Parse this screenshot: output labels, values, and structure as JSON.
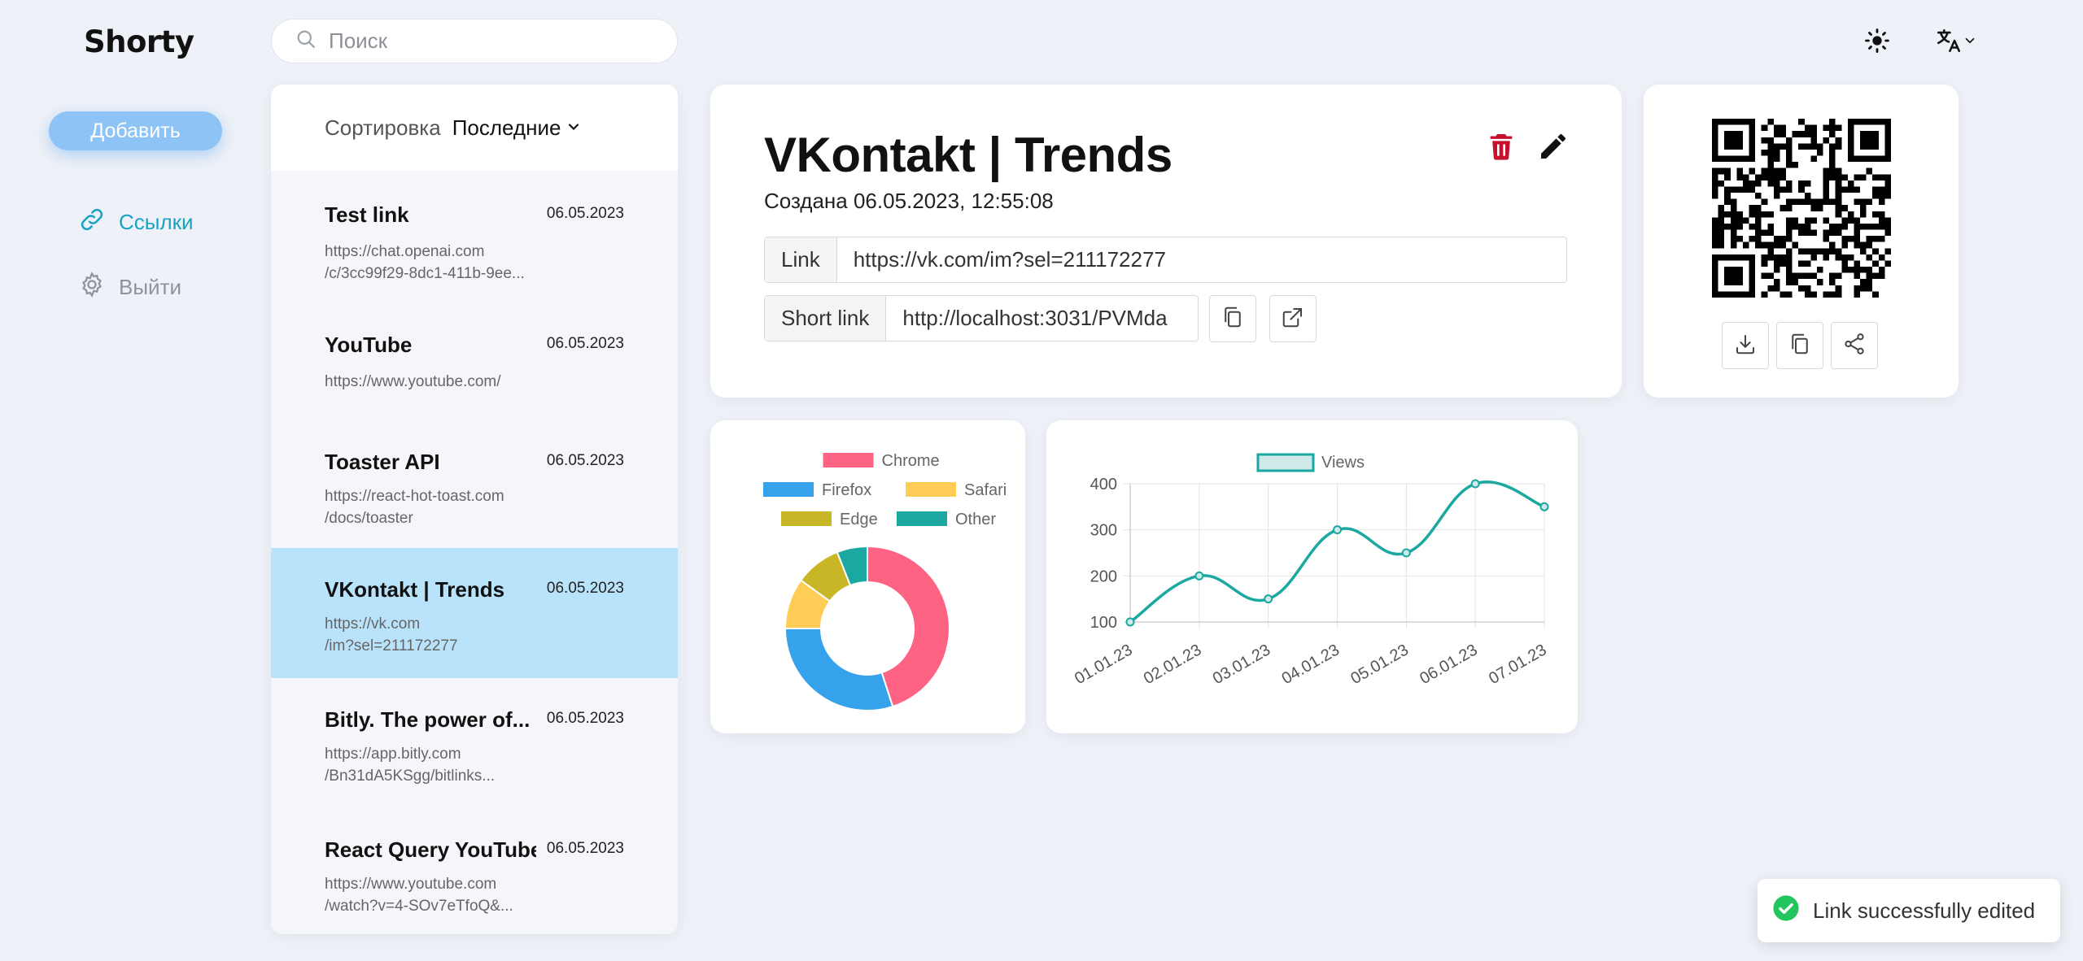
{
  "app": {
    "logo": "Shorty"
  },
  "header": {
    "search_placeholder": "Поиск",
    "icons": [
      "sun-icon",
      "translate-icon",
      "chevron-down-icon"
    ]
  },
  "sidebar": {
    "add_label": "Добавить",
    "items": [
      {
        "label": "Ссылки",
        "icon": "link-icon",
        "color": "#1aa3c5"
      },
      {
        "label": "Выйти",
        "icon": "gear-icon",
        "color": "#8f949b"
      }
    ]
  },
  "list": {
    "sort_label": "Сортировка",
    "sort_value": "Последние",
    "items": [
      {
        "title": "Test link",
        "date": "06.05.2023",
        "url_line1": "https://chat.openai.com",
        "url_line2": "/c/3cc99f29-8dc1-411b-9ee..."
      },
      {
        "title": "YouTube",
        "date": "06.05.2023",
        "url_line1": "https://www.youtube.com/",
        "url_line2": ""
      },
      {
        "title": "Toaster API",
        "date": "06.05.2023",
        "url_line1": "https://react-hot-toast.com",
        "url_line2": "/docs/toaster"
      },
      {
        "title": "VKontakt | Trends",
        "date": "06.05.2023",
        "url_line1": "https://vk.com",
        "url_line2": "/im?sel=211172277"
      },
      {
        "title": "Bitly. The power of...",
        "date": "06.05.2023",
        "url_line1": "https://app.bitly.com",
        "url_line2": "/Bn31dA5KSgg/bitlinks..."
      },
      {
        "title": "React Query YouTube",
        "date": "06.05.2023",
        "url_line1": "https://www.youtube.com",
        "url_line2": "/watch?v=4-SOv7eTfoQ&..."
      }
    ]
  },
  "detail": {
    "title": "VKontakt | Trends",
    "created": "Создана 06.05.2023, 12:55:08",
    "link_label": "Link",
    "link_value": "https://vk.com/im?sel=211172277",
    "short_label": "Short link",
    "short_value": "http://localhost:3031/PVMda",
    "delete_color": "#c8102e"
  },
  "chart_data": [
    {
      "type": "pie",
      "variant": "doughnut",
      "categories": [
        "Chrome",
        "Firefox",
        "Safari",
        "Edge",
        "Other"
      ],
      "values": [
        45,
        30,
        10,
        9,
        6
      ],
      "colors": [
        "#ff6384",
        "#36a2eb",
        "#ffcd56",
        "#c9b627",
        "#1aa8a0"
      ],
      "legend": "top"
    },
    {
      "type": "line",
      "categories": [
        "01.01.23",
        "02.01.23",
        "03.01.23",
        "04.01.23",
        "05.01.23",
        "06.01.23",
        "07.01.23"
      ],
      "series": [
        {
          "name": "Views",
          "values": [
            100,
            200,
            150,
            300,
            250,
            400,
            350
          ]
        }
      ],
      "ylim": [
        100,
        400
      ],
      "yticks": [
        100,
        200,
        300,
        400
      ],
      "grid": true,
      "legend": "top",
      "color": "#1aa8a0"
    }
  ],
  "toast": {
    "message": "Link successfully edited",
    "color": "#22c55e"
  }
}
